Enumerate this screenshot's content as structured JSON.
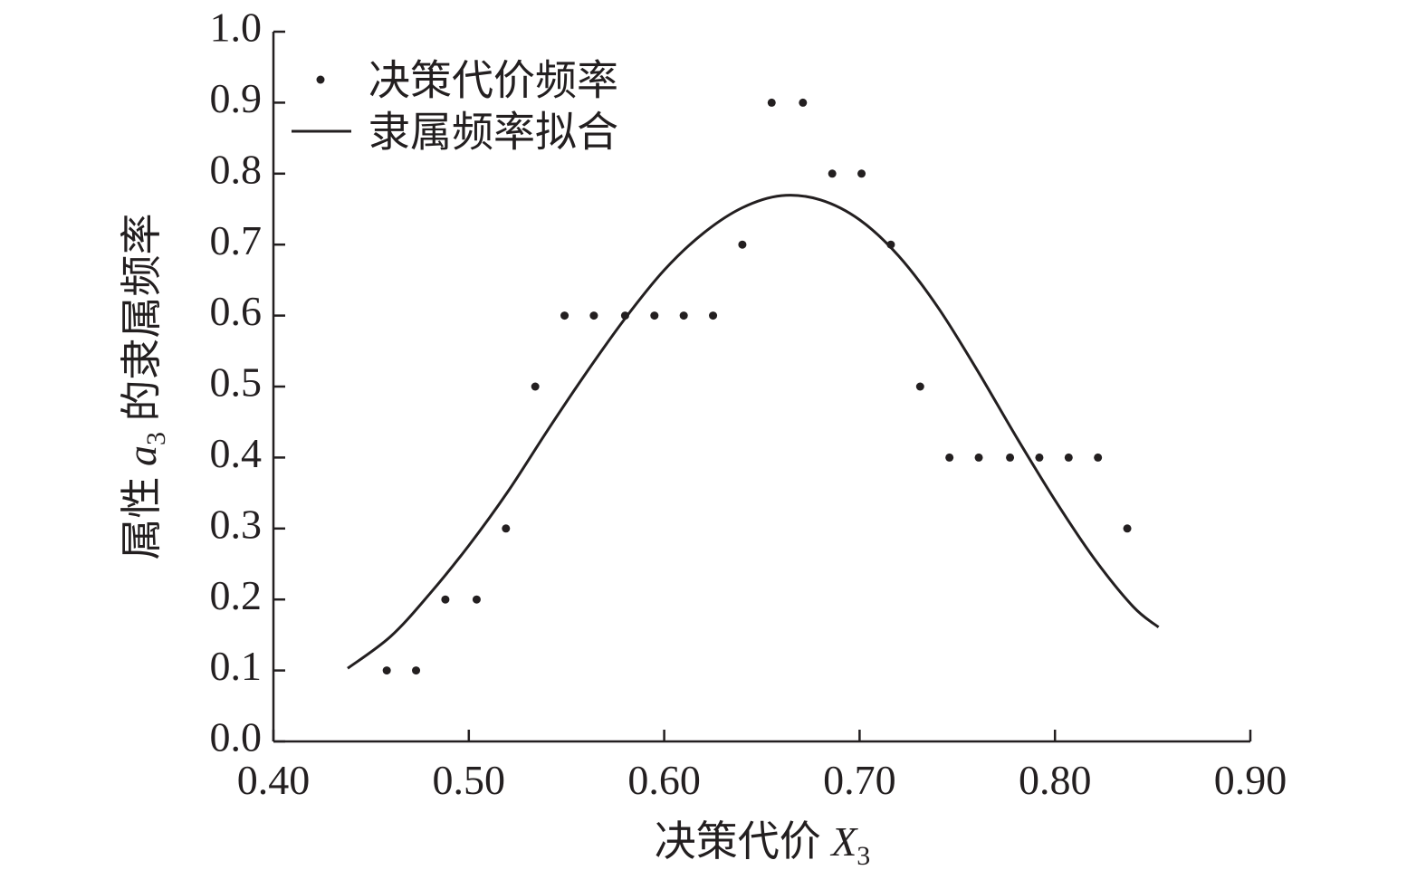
{
  "chart_data": {
    "type": "scatter",
    "xlabel": "决策代价 ",
    "xlabel_var": "X",
    "xlabel_sub": "3",
    "ylabel_prefix": "属性 ",
    "ylabel_var": "a",
    "ylabel_sub": "3",
    "ylabel_suffix": " 的隶属频率",
    "xlim": [
      0.4,
      0.9
    ],
    "ylim": [
      0.0,
      1.0
    ],
    "x_ticks": [
      0.4,
      0.5,
      0.6,
      0.7,
      0.8,
      0.9
    ],
    "x_tick_labels": [
      "0.40",
      "0.50",
      "0.60",
      "0.70",
      "0.80",
      "0.90"
    ],
    "y_ticks": [
      0.0,
      0.1,
      0.2,
      0.3,
      0.4,
      0.5,
      0.6,
      0.7,
      0.8,
      0.9,
      1.0
    ],
    "y_tick_labels": [
      "0.0",
      "0.1",
      "0.2",
      "0.3",
      "0.4",
      "0.5",
      "0.6",
      "0.7",
      "0.8",
      "0.9",
      "1.0"
    ],
    "grid": false,
    "legend_position": "top-left",
    "series": [
      {
        "name": "决策代价频率",
        "kind": "scatter",
        "color": "#231f20",
        "x": [
          0.458,
          0.473,
          0.488,
          0.504,
          0.519,
          0.534,
          0.549,
          0.564,
          0.58,
          0.595,
          0.61,
          0.625,
          0.64,
          0.655,
          0.671,
          0.686,
          0.701,
          0.716,
          0.731,
          0.746,
          0.761,
          0.777,
          0.792,
          0.807,
          0.822,
          0.837
        ],
        "y": [
          0.1,
          0.1,
          0.2,
          0.2,
          0.3,
          0.5,
          0.6,
          0.6,
          0.6,
          0.6,
          0.6,
          0.6,
          0.7,
          0.9,
          0.9,
          0.8,
          0.8,
          0.7,
          0.5,
          0.4,
          0.4,
          0.4,
          0.4,
          0.4,
          0.4,
          0.3
        ]
      },
      {
        "name": "隶属频率拟合",
        "kind": "line",
        "color": "#231f20",
        "x": [
          0.438,
          0.46,
          0.48,
          0.5,
          0.52,
          0.54,
          0.56,
          0.58,
          0.6,
          0.62,
          0.64,
          0.66,
          0.68,
          0.7,
          0.72,
          0.74,
          0.76,
          0.78,
          0.8,
          0.82,
          0.84,
          0.853
        ],
        "y": [
          0.103,
          0.148,
          0.208,
          0.276,
          0.352,
          0.437,
          0.519,
          0.596,
          0.664,
          0.716,
          0.752,
          0.769,
          0.763,
          0.735,
          0.684,
          0.612,
          0.524,
          0.43,
          0.34,
          0.258,
          0.19,
          0.161
        ]
      }
    ]
  }
}
